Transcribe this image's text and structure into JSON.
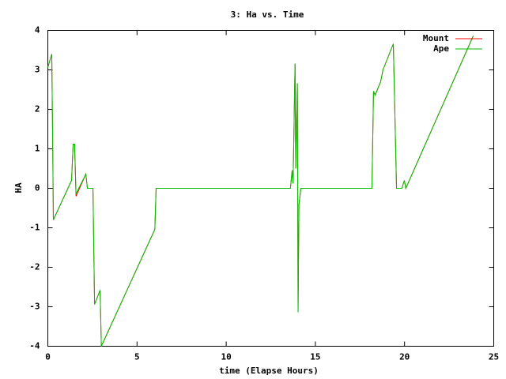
{
  "chart_data": {
    "type": "line",
    "title": "3: Ha vs. Time",
    "x_label": "time (Elapse Hours)",
    "y_label": "HA",
    "x": [
      0,
      0.22,
      0.27,
      0.31,
      1.33,
      1.42,
      1.5,
      1.58,
      2.13,
      2.22,
      2.53,
      2.62,
      2.93,
      3.0,
      6.0,
      6.07,
      13.6,
      13.7,
      13.75,
      13.86,
      13.9,
      13.99,
      14.03,
      14.08,
      14.19,
      18.17,
      18.26,
      18.35,
      18.66,
      18.79,
      19.37,
      19.55,
      19.85,
      19.99,
      20.07,
      23.85
    ],
    "series": [
      {
        "name": "Mount",
        "color": "#ff0000",
        "values": [
          3.06,
          3.4,
          1.26,
          -0.8,
          0.2,
          1.12,
          1.1,
          -0.2,
          0.36,
          0,
          0,
          -2.94,
          -2.58,
          -4,
          -1.04,
          0,
          0,
          0.46,
          0.12,
          3.16,
          0.5,
          2.66,
          -3.14,
          -0.4,
          0,
          0,
          2.46,
          2.36,
          2.7,
          3.0,
          3.66,
          0,
          0,
          0.2,
          0,
          3.86
        ]
      },
      {
        "name": "Ape",
        "color": "#00c000",
        "values": [
          3.06,
          3.4,
          1.26,
          -0.8,
          0.2,
          1.12,
          1.12,
          -0.14,
          0.36,
          0,
          0,
          -2.94,
          -2.58,
          -4,
          -1.04,
          0,
          0,
          0.46,
          0.12,
          3.16,
          0.5,
          2.66,
          -3.14,
          -0.4,
          0,
          0,
          2.46,
          2.36,
          2.7,
          3.0,
          3.66,
          0,
          0,
          0.2,
          0,
          3.86
        ]
      }
    ],
    "xlim": [
      0,
      25
    ],
    "xticks": [
      0,
      5,
      10,
      15,
      20,
      25
    ],
    "ylim": [
      -4,
      4
    ],
    "yticks": [
      -4,
      -3,
      -2,
      -1,
      0,
      1,
      2,
      3,
      4
    ],
    "legend": "top-right"
  }
}
